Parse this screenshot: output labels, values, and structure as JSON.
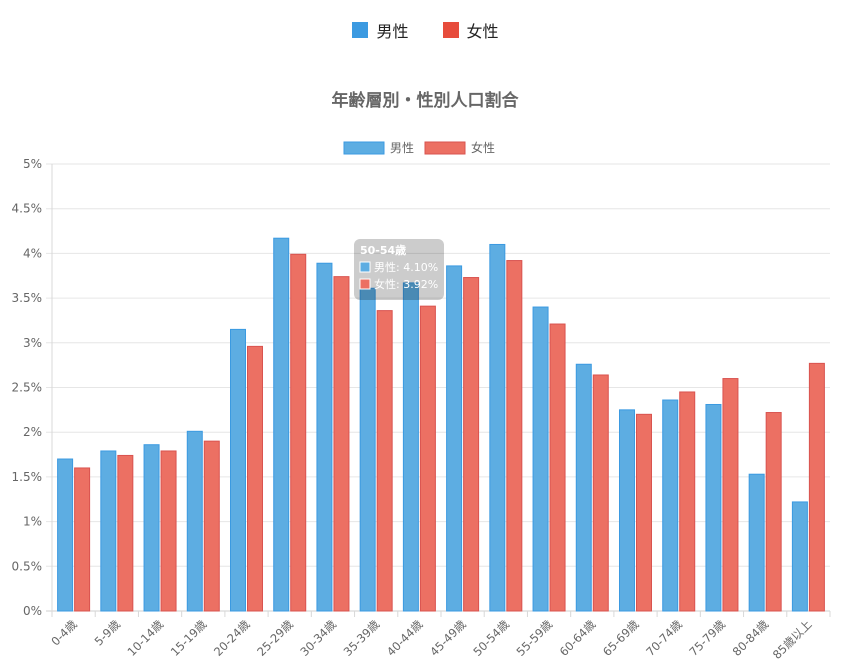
{
  "top_legend": [
    {
      "label": "男性",
      "color": "#3b9ae1"
    },
    {
      "label": "女性",
      "color": "#e74c3c"
    }
  ],
  "tooltip": {
    "title": "50-54歳",
    "lines": [
      "男性: 4.10%",
      "女性: 3.92%"
    ]
  },
  "chart_data": {
    "type": "bar",
    "title": "年齢層別・性別人口割合",
    "legend_position": "top",
    "grid": true,
    "ylim": [
      0,
      5
    ],
    "yticks": [
      "0%",
      "0.5%",
      "1%",
      "1.5%",
      "2%",
      "2.5%",
      "3%",
      "3.5%",
      "4%",
      "4.5%",
      "5%"
    ],
    "categories": [
      "0-4歳",
      "5-9歳",
      "10-14歳",
      "15-19歳",
      "20-24歳",
      "25-29歳",
      "30-34歳",
      "35-39歳",
      "40-44歳",
      "45-49歳",
      "50-54歳",
      "55-59歳",
      "60-64歳",
      "65-69歳",
      "70-74歳",
      "75-79歳",
      "80-84歳",
      "85歳以上"
    ],
    "series": [
      {
        "name": "男性",
        "color": "#5dade2",
        "stroke": "#3b9ae1",
        "values": [
          1.7,
          1.79,
          1.86,
          2.01,
          3.15,
          4.17,
          3.89,
          3.61,
          3.67,
          3.86,
          4.1,
          3.4,
          2.76,
          2.25,
          2.36,
          2.31,
          1.53,
          1.22
        ]
      },
      {
        "name": "女性",
        "color": "#ec7063",
        "stroke": "#d9534f",
        "values": [
          1.6,
          1.74,
          1.79,
          1.9,
          2.96,
          3.99,
          3.74,
          3.36,
          3.41,
          3.73,
          3.92,
          3.21,
          2.64,
          2.2,
          2.45,
          2.6,
          2.22,
          2.77
        ]
      }
    ]
  }
}
